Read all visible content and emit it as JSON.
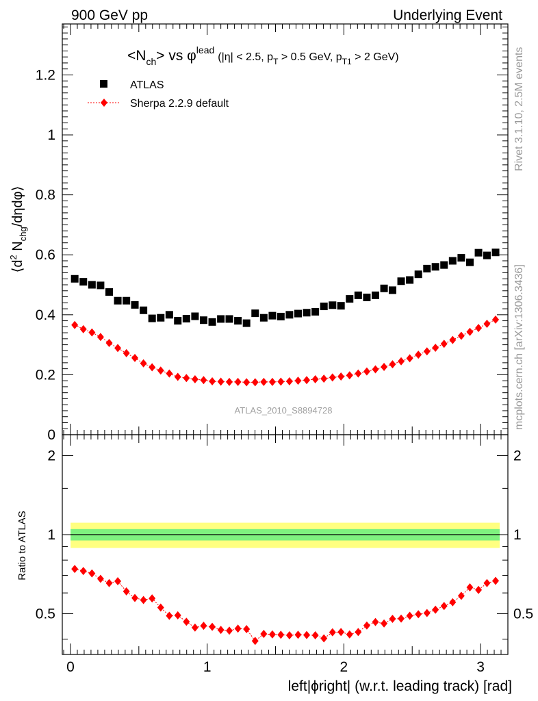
{
  "header": {
    "left": "900 GeV pp",
    "right": "Underlying Event"
  },
  "side": {
    "rivet": "Rivet 3.1.10,  2.5M events",
    "mcplots": "mcplots.cern.ch [arXiv:1306.3436]"
  },
  "title": {
    "main": "<N",
    "main_sub": "ch",
    "main_rest": "> vs φ",
    "main_sup": "lead",
    "cuts_a": "(|η| < 2.5, p",
    "cuts_a_sub": "T",
    "cuts_b": " > 0.5 GeV, p",
    "cuts_b_sub": "T1",
    "cuts_c": " > 2 GeV)"
  },
  "ylabel_top": {
    "a": "⟨d",
    "a_sup": "2",
    "b": " N",
    "b_sub": "chg",
    "c": "/dηdφ⟩"
  },
  "ylabel_bottom": "Ratio to ATLAS",
  "xlabel": "left|ϕright| (w.r.t. leading track) [rad]",
  "analysis_id": "ATLAS_2010_S8894728",
  "legend": {
    "atlas": "ATLAS",
    "sherpa": "Sherpa 2.2.9 default"
  },
  "colors": {
    "data": "#000000",
    "mc": "#ff0000",
    "band_inner": "#7ff27f",
    "band_outer": "#ffff80",
    "id_text": "#a0a0a0",
    "side_text": "#999999"
  },
  "chart_data": [
    {
      "type": "scatter",
      "panel": "main",
      "xlim": [
        -0.06,
        3.2
      ],
      "ylim": [
        0,
        1.37
      ],
      "xticks": [
        "0",
        "1",
        "2",
        "3"
      ],
      "yticks": [
        "0",
        "0.2",
        "0.4",
        "0.6",
        "0.8",
        "1",
        "1.2"
      ],
      "x": [
        0.031,
        0.094,
        0.157,
        0.22,
        0.283,
        0.346,
        0.409,
        0.471,
        0.534,
        0.597,
        0.66,
        0.723,
        0.785,
        0.848,
        0.911,
        0.974,
        1.037,
        1.1,
        1.162,
        1.225,
        1.288,
        1.351,
        1.414,
        1.477,
        1.539,
        1.602,
        1.665,
        1.728,
        1.791,
        1.854,
        1.917,
        1.979,
        2.042,
        2.105,
        2.168,
        2.231,
        2.294,
        2.356,
        2.419,
        2.482,
        2.545,
        2.608,
        2.67,
        2.733,
        2.796,
        2.859,
        2.922,
        2.985,
        3.047,
        3.11
      ],
      "series": [
        {
          "name": "ATLAS",
          "marker": "square",
          "values": [
            0.52,
            0.51,
            0.5,
            0.498,
            0.476,
            0.447,
            0.447,
            0.433,
            0.415,
            0.388,
            0.39,
            0.4,
            0.38,
            0.387,
            0.395,
            0.382,
            0.376,
            0.386,
            0.386,
            0.38,
            0.372,
            0.405,
            0.39,
            0.397,
            0.394,
            0.4,
            0.404,
            0.407,
            0.41,
            0.428,
            0.432,
            0.43,
            0.453,
            0.465,
            0.458,
            0.465,
            0.488,
            0.482,
            0.512,
            0.516,
            0.535,
            0.554,
            0.56,
            0.566,
            0.58,
            0.59,
            0.575,
            0.607,
            0.598,
            0.608
          ]
        },
        {
          "name": "Sherpa 2.2.9 default",
          "marker": "diamond",
          "values": [
            0.366,
            0.352,
            0.341,
            0.326,
            0.306,
            0.289,
            0.272,
            0.256,
            0.238,
            0.225,
            0.214,
            0.204,
            0.193,
            0.189,
            0.185,
            0.182,
            0.178,
            0.177,
            0.176,
            0.176,
            0.175,
            0.175,
            0.176,
            0.176,
            0.177,
            0.178,
            0.18,
            0.182,
            0.185,
            0.187,
            0.191,
            0.194,
            0.198,
            0.204,
            0.211,
            0.218,
            0.226,
            0.235,
            0.245,
            0.255,
            0.267,
            0.278,
            0.29,
            0.303,
            0.316,
            0.33,
            0.343,
            0.356,
            0.37,
            0.384
          ]
        }
      ]
    },
    {
      "type": "scatter",
      "panel": "ratio",
      "xlim": [
        -0.06,
        3.2
      ],
      "ylim": [
        0.35,
        2.4
      ],
      "yscale": "log",
      "yticks": [
        "0.5",
        "1",
        "2"
      ],
      "band": {
        "inner": [
          0.95,
          1.05
        ],
        "outer": [
          0.89,
          1.11
        ]
      },
      "series": [
        {
          "name": "Sherpa 2.2.9 default",
          "marker": "diamond",
          "values": [
            0.74,
            0.727,
            0.712,
            0.679,
            0.654,
            0.665,
            0.608,
            0.574,
            0.564,
            0.572,
            0.528,
            0.491,
            0.493,
            0.466,
            0.443,
            0.45,
            0.446,
            0.434,
            0.431,
            0.439,
            0.437,
            0.394,
            0.419,
            0.417,
            0.416,
            0.414,
            0.416,
            0.415,
            0.414,
            0.403,
            0.425,
            0.426,
            0.417,
            0.426,
            0.451,
            0.465,
            0.459,
            0.478,
            0.479,
            0.491,
            0.498,
            0.503,
            0.518,
            0.535,
            0.553,
            0.585,
            0.63,
            0.616,
            0.654,
            0.667
          ]
        }
      ]
    }
  ]
}
